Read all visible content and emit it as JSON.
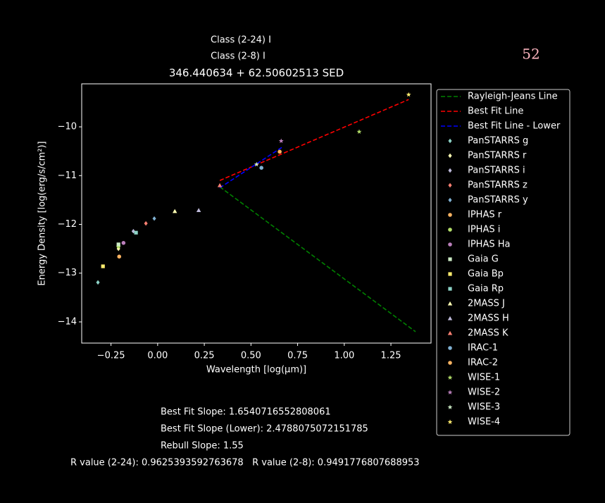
{
  "chart_data": {
    "type": "scatter",
    "corner_label": "52",
    "subtitles": [
      "Class (2-24) I",
      "Class (2-8) I"
    ],
    "title": "346.440634 + 62.50602513 SED",
    "xlabel": "Wavelength [log(μm)]",
    "ylabel": "Energy Density [log(erg/s/cm²)]",
    "xlim": [
      -0.407,
      1.465
    ],
    "ylim": [
      -14.434,
      -9.118
    ],
    "xticks": [
      {
        "value": -0.25,
        "label": "−0.25"
      },
      {
        "value": 0,
        "label": "0.00"
      },
      {
        "value": 0.25,
        "label": "0.25"
      },
      {
        "value": 0.5,
        "label": "0.50"
      },
      {
        "value": 0.75,
        "label": "0.75"
      },
      {
        "value": 1,
        "label": "1.00"
      },
      {
        "value": 1.25,
        "label": "1.25"
      }
    ],
    "yticks": [
      {
        "value": -14,
        "label": "−14"
      },
      {
        "value": -13,
        "label": "−13"
      },
      {
        "value": -12,
        "label": "−12"
      },
      {
        "value": -11,
        "label": "−11"
      },
      {
        "value": -10,
        "label": "−10"
      }
    ],
    "legend": "outside-right",
    "series": [
      {
        "name": "Rayleigh-Jeans Line",
        "color": "#008000",
        "marker": "dashed-line",
        "x": [
          0.333,
          1.382
        ],
        "values": [
          -11.23,
          -14.2
        ]
      },
      {
        "name": "Best Fit Line",
        "color": "#ff0000",
        "marker": "dashed-line",
        "x": [
          0.333,
          1.345
        ],
        "values": [
          -11.1,
          -9.44
        ]
      },
      {
        "name": "Best Fit Line - Lower",
        "color": "#0000ff",
        "marker": "dashed-line",
        "x": [
          0.333,
          0.666
        ],
        "values": [
          -11.25,
          -10.42
        ]
      },
      {
        "name": "PanSTARRS g",
        "color": "#8dd3c7",
        "marker": "diamond",
        "x": [
          -0.32
        ],
        "values": [
          -13.19
        ]
      },
      {
        "name": "PanSTARRS r",
        "color": "#ffffb3",
        "marker": "diamond",
        "x": [
          -0.21
        ],
        "values": [
          -12.5
        ]
      },
      {
        "name": "PanSTARRS i",
        "color": "#bebada",
        "marker": "diamond",
        "x": [
          -0.13
        ],
        "values": [
          -12.14
        ]
      },
      {
        "name": "PanSTARRS z",
        "color": "#fb8072",
        "marker": "diamond",
        "x": [
          -0.063
        ],
        "values": [
          -11.98
        ]
      },
      {
        "name": "PanSTARRS y",
        "color": "#80b1d3",
        "marker": "diamond",
        "x": [
          -0.018
        ],
        "values": [
          -11.88
        ]
      },
      {
        "name": "IPHAS r",
        "color": "#fdb462",
        "marker": "circle",
        "x": [
          -0.206
        ],
        "values": [
          -12.66
        ]
      },
      {
        "name": "IPHAS i",
        "color": "#b3de69",
        "marker": "circle",
        "x": [
          -0.21
        ],
        "values": [
          -12.45
        ]
      },
      {
        "name": "IPHAS Ha",
        "color": "#bc80bd",
        "marker": "circle",
        "x": [
          -0.183
        ],
        "values": [
          -12.38
        ]
      },
      {
        "name": "Gaia G",
        "color": "#ccebc5",
        "marker": "square",
        "x": [
          -0.21
        ],
        "values": [
          -12.41
        ]
      },
      {
        "name": "Gaia Bp",
        "color": "#ffed6f",
        "marker": "square",
        "x": [
          -0.293
        ],
        "values": [
          -12.86
        ]
      },
      {
        "name": "Gaia Rp",
        "color": "#8dd3c7",
        "marker": "square",
        "x": [
          -0.116
        ],
        "values": [
          -12.17
        ]
      },
      {
        "name": "2MASS J",
        "color": "#ffffb3",
        "marker": "triangle",
        "x": [
          0.092
        ],
        "values": [
          -11.73
        ]
      },
      {
        "name": "2MASS H",
        "color": "#bebada",
        "marker": "triangle",
        "x": [
          0.22
        ],
        "values": [
          -11.71
        ]
      },
      {
        "name": "2MASS K",
        "color": "#fb8072",
        "marker": "triangle",
        "x": [
          0.333
        ],
        "values": [
          -11.2
        ]
      },
      {
        "name": "IRAC-1",
        "color": "#80b1d3",
        "marker": "circle",
        "x": [
          0.556
        ],
        "values": [
          -10.84
        ]
      },
      {
        "name": "IRAC-2",
        "color": "#fdb462",
        "marker": "circle",
        "x": [
          0.654
        ],
        "values": [
          -10.51
        ]
      },
      {
        "name": "WISE-1",
        "color": "#b3de69",
        "marker": "star",
        "x": [
          1.08
        ],
        "values": [
          -10.1
        ]
      },
      {
        "name": "WISE-2",
        "color": "#bc80bd",
        "marker": "star",
        "x": [
          0.662
        ],
        "values": [
          -10.29
        ]
      },
      {
        "name": "WISE-3",
        "color": "#ccebc5",
        "marker": "star",
        "x": [
          0.53
        ],
        "values": [
          -10.77
        ]
      },
      {
        "name": "WISE-4",
        "color": "#ffed6f",
        "marker": "star",
        "x": [
          1.345
        ],
        "values": [
          -9.34
        ]
      }
    ],
    "notes": [
      "Best Fit Slope: 1.6540716552808061",
      "Best Fit Slope (Lower): 2.4788075072151785",
      "Rebull Slope: 1.55",
      "R value (2-24): 0.9625393592763678   R value (2-8): 0.9491776807688953"
    ]
  }
}
